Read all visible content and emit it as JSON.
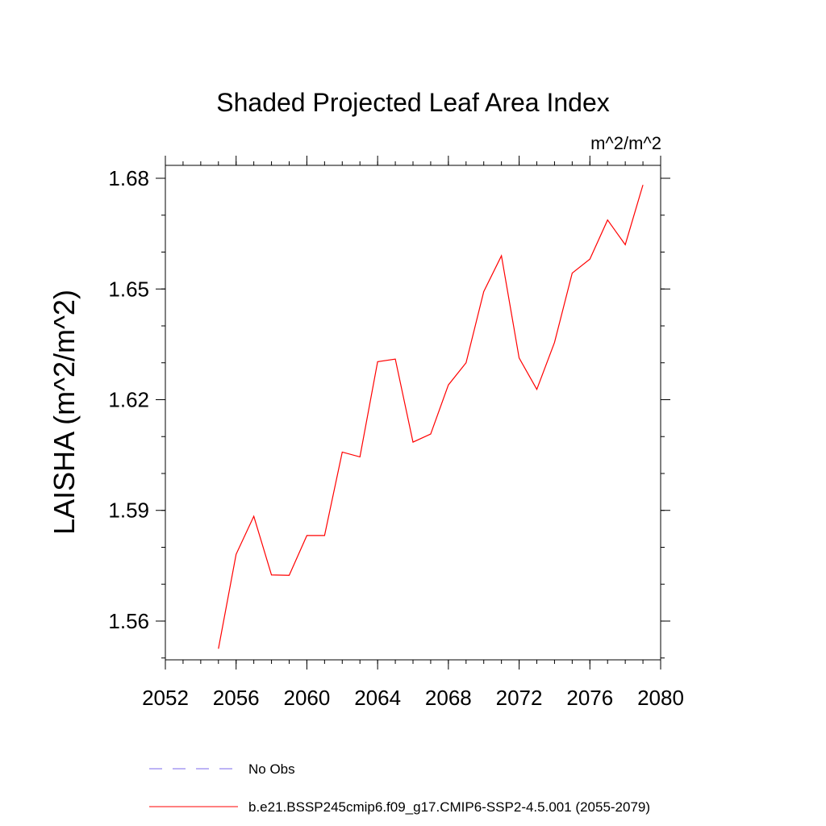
{
  "chart_data": {
    "type": "line",
    "title": "Shaded Projected Leaf Area Index",
    "units_label": "m^2/m^2",
    "ylabel": "LAISHA  (m^2/m^2)",
    "xlabel": "",
    "xlim": [
      2052,
      2080
    ],
    "ylim": [
      1.5495,
      1.6835
    ],
    "x_ticks": [
      2052,
      2056,
      2060,
      2064,
      2068,
      2072,
      2076,
      2080
    ],
    "x_tick_labels": [
      "2052",
      "2056",
      "2060",
      "2064",
      "2068",
      "2072",
      "2076",
      "2080"
    ],
    "y_ticks": [
      1.56,
      1.59,
      1.62,
      1.65,
      1.68
    ],
    "y_tick_labels": [
      "1.56",
      "1.59",
      "1.62",
      "1.65",
      "1.68"
    ],
    "y_minor_step": 0.01,
    "x_minor_step": 1,
    "grid": false,
    "legend_position": "bottom",
    "series": [
      {
        "name": "b.e21.BSSP245cmip6.f09_g17.CMIP6-SSP2-4.5.001 (2055-2079)",
        "color": "#ff0000",
        "dash": "solid",
        "x": [
          2055,
          2056,
          2057,
          2058,
          2059,
          2060,
          2061,
          2062,
          2063,
          2064,
          2065,
          2066,
          2067,
          2068,
          2069,
          2070,
          2071,
          2072,
          2073,
          2074,
          2075,
          2076,
          2077,
          2078,
          2079
        ],
        "y": [
          1.5525,
          1.5781,
          1.5884,
          1.5725,
          1.5724,
          1.5832,
          1.5832,
          1.6058,
          1.6045,
          1.6303,
          1.631,
          1.6085,
          1.6107,
          1.624,
          1.63,
          1.6493,
          1.659,
          1.6313,
          1.6228,
          1.6355,
          1.6543,
          1.6581,
          1.6687,
          1.662,
          1.6782
        ]
      }
    ],
    "legend": [
      {
        "label": "No Obs",
        "color": "#7b68ee",
        "dash": "dashed"
      },
      {
        "label": "b.e21.BSSP245cmip6.f09_g17.CMIP6-SSP2-4.5.001 (2055-2079)",
        "color": "#ff0000",
        "dash": "solid"
      }
    ]
  }
}
